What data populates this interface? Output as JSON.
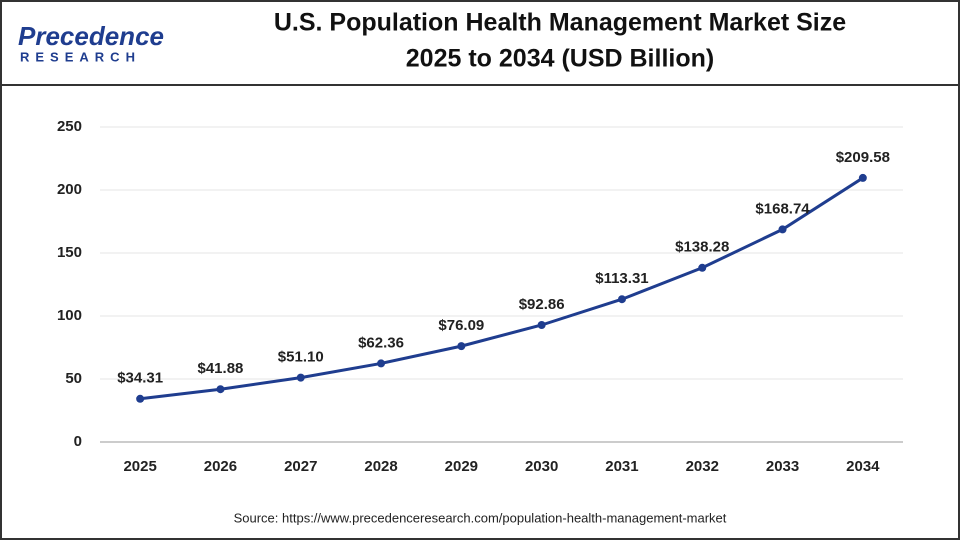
{
  "logo": {
    "name": "Precedence",
    "sub": "RESEARCH"
  },
  "chart_data": {
    "type": "line",
    "title": [
      "U.S. Population Health Management Market Size",
      "2025 to 2034 (USD Billion)"
    ],
    "categories": [
      "2025",
      "2026",
      "2027",
      "2028",
      "2029",
      "2030",
      "2031",
      "2032",
      "2033",
      "2034"
    ],
    "series": [
      {
        "name": "U.S. Population Health Management Market Size",
        "color": "#1f3d8f",
        "values": [
          34.31,
          41.88,
          51.1,
          62.36,
          76.09,
          92.86,
          113.31,
          138.28,
          168.74,
          209.58
        ],
        "value_labels": [
          "$34.31",
          "$41.88",
          "$51.10",
          "$62.36",
          "$76.09",
          "$92.86",
          "$113.31",
          "$138.28",
          "$168.74",
          "$209.58"
        ]
      }
    ],
    "ylim": [
      0,
      250
    ],
    "yticks": [
      0,
      50,
      100,
      150,
      200,
      250
    ],
    "grid": true,
    "source": "Source: https://www.precedenceresearch.com/population-health-management-market"
  }
}
